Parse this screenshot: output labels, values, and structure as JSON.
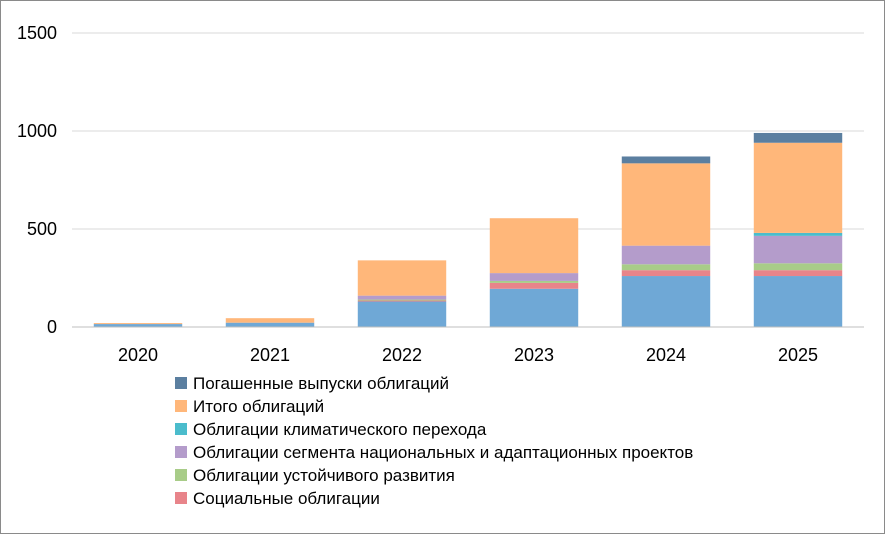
{
  "chart_data": {
    "type": "bar",
    "stacked": true,
    "categories": [
      "2020",
      "2021",
      "2022",
      "2023",
      "2024",
      "2025"
    ],
    "ylim": [
      0,
      1500
    ],
    "yticks": [
      0,
      500,
      1000,
      1500
    ],
    "grid": true,
    "legend_position": "bottom",
    "series": [
      {
        "name": "",
        "color": "#6fa8d6",
        "values": [
          15,
          22,
          130,
          195,
          260,
          260
        ]
      },
      {
        "name": "Социальные облигации",
        "color": "#e8848a",
        "values": [
          0,
          0,
          5,
          30,
          30,
          30
        ]
      },
      {
        "name": "Облигации устойчивого развития",
        "color": "#a8cc88",
        "values": [
          0,
          0,
          5,
          10,
          30,
          35
        ]
      },
      {
        "name": "Облигации сегмента национальных и адаптационных проектов",
        "color": "#b49ccb",
        "values": [
          0,
          0,
          20,
          40,
          95,
          140
        ]
      },
      {
        "name": "Облигации климатического перехода",
        "color": "#4bbccc",
        "values": [
          0,
          0,
          0,
          0,
          0,
          15
        ]
      },
      {
        "name": "Итого облигаций",
        "color": "#ffb77a",
        "values": [
          5,
          23,
          180,
          280,
          420,
          460
        ]
      },
      {
        "name": "Погашенные выпуски облигаций",
        "color": "#5b7fa0",
        "values": [
          0,
          0,
          0,
          0,
          35,
          50
        ]
      }
    ],
    "legend": [
      {
        "name": "Погашенные выпуски облигаций",
        "color": "#5b7fa0"
      },
      {
        "name": "Итого облигаций",
        "color": "#ffb77a"
      },
      {
        "name": "Облигации климатического перехода",
        "color": "#4bbccc"
      },
      {
        "name": "Облигации сегмента национальных и адаптационных проектов",
        "color": "#b49ccb"
      },
      {
        "name": "Облигации устойчивого развития",
        "color": "#a8cc88"
      },
      {
        "name": "Социальные облигации",
        "color": "#e8848a"
      }
    ]
  }
}
